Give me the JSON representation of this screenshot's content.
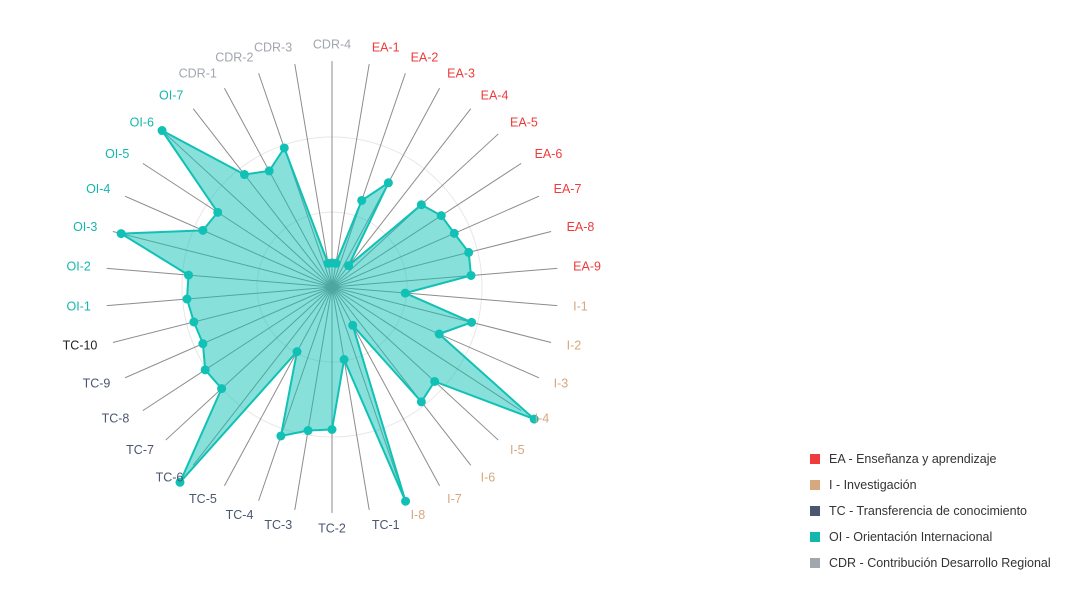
{
  "chart_data": {
    "type": "radar",
    "title": "",
    "range": [
      0,
      1
    ],
    "grid": true,
    "legend_position": "bottom-right",
    "fill_color": "#11c1b5",
    "category_colors": {
      "EA": "#ee3b3b",
      "I": "#d7a77d",
      "TC": "#4b5670",
      "TC-10": "#222222",
      "OI": "#13b7ac",
      "CDR": "#a2a6af"
    },
    "categories": [
      {
        "label": "CDR-4",
        "group": "CDR",
        "value": 0.16
      },
      {
        "label": "EA-1",
        "group": "EA",
        "value": 0.16
      },
      {
        "label": "EA-2",
        "group": "EA",
        "value": 0.61
      },
      {
        "label": "EA-3",
        "group": "EA",
        "value": 0.79
      },
      {
        "label": "EA-4",
        "group": "EA",
        "value": 0.18
      },
      {
        "label": "EA-5",
        "group": "EA",
        "value": 0.81
      },
      {
        "label": "EA-6",
        "group": "EA",
        "value": 0.87
      },
      {
        "label": "EA-7",
        "group": "EA",
        "value": 0.89
      },
      {
        "label": "EA-8",
        "group": "EA",
        "value": 0.94
      },
      {
        "label": "EA-9",
        "group": "EA",
        "value": 0.93
      },
      {
        "label": "I-1",
        "group": "I",
        "value": 0.49
      },
      {
        "label": "I-2",
        "group": "I",
        "value": 0.96
      },
      {
        "label": "I-3",
        "group": "I",
        "value": 0.78
      },
      {
        "label": "I-4",
        "group": "I",
        "value": 1.61
      },
      {
        "label": "I-5",
        "group": "I",
        "value": 0.93
      },
      {
        "label": "I-6",
        "group": "I",
        "value": 0.97
      },
      {
        "label": "I-7",
        "group": "I",
        "value": 0.29
      },
      {
        "label": "I-8",
        "group": "I",
        "value": 1.51
      },
      {
        "label": "TC-1",
        "group": "TC",
        "value": 0.49
      },
      {
        "label": "TC-2",
        "group": "TC",
        "value": 0.95
      },
      {
        "label": "TC-3",
        "group": "TC",
        "value": 0.97
      },
      {
        "label": "TC-4",
        "group": "TC",
        "value": 1.05
      },
      {
        "label": "TC-5",
        "group": "TC",
        "value": 0.49
      },
      {
        "label": "TC-6",
        "group": "TC",
        "value": 1.65
      },
      {
        "label": "TC-7",
        "group": "TC",
        "value": 1.0
      },
      {
        "label": "TC-8",
        "group": "TC",
        "value": 1.01
      },
      {
        "label": "TC-9",
        "group": "TC",
        "value": 0.94
      },
      {
        "label": "TC-10",
        "group": "TC-10",
        "value": 0.95
      },
      {
        "label": "OI-1",
        "group": "OI",
        "value": 0.97
      },
      {
        "label": "OI-2",
        "group": "OI",
        "value": 0.96
      },
      {
        "label": "OI-3",
        "group": "OI",
        "value": 1.45
      },
      {
        "label": "OI-4",
        "group": "OI",
        "value": 0.94
      },
      {
        "label": "OI-5",
        "group": "OI",
        "value": 0.91
      },
      {
        "label": "OI-6",
        "group": "OI",
        "value": 1.54
      },
      {
        "label": "OI-7",
        "group": "OI",
        "value": 0.95
      },
      {
        "label": "CDR-1",
        "group": "CDR",
        "value": 0.88
      },
      {
        "label": "CDR-2",
        "group": "CDR",
        "value": 0.98
      },
      {
        "label": "CDR-3",
        "group": "CDR",
        "value": 0.16
      }
    ],
    "legend": [
      {
        "label": "EA - Enseñanza y aprendizaje",
        "color": "#ee3b3b"
      },
      {
        "label": "I - Investigación",
        "color": "#d7a77d"
      },
      {
        "label": "TC - Transferencia de conocimiento",
        "color": "#4b5670"
      },
      {
        "label": "OI - Orientación Internacional",
        "color": "#13b7ac"
      },
      {
        "label": "CDR - Contribución Desarrollo Regional",
        "color": "#a2a6af"
      }
    ]
  }
}
